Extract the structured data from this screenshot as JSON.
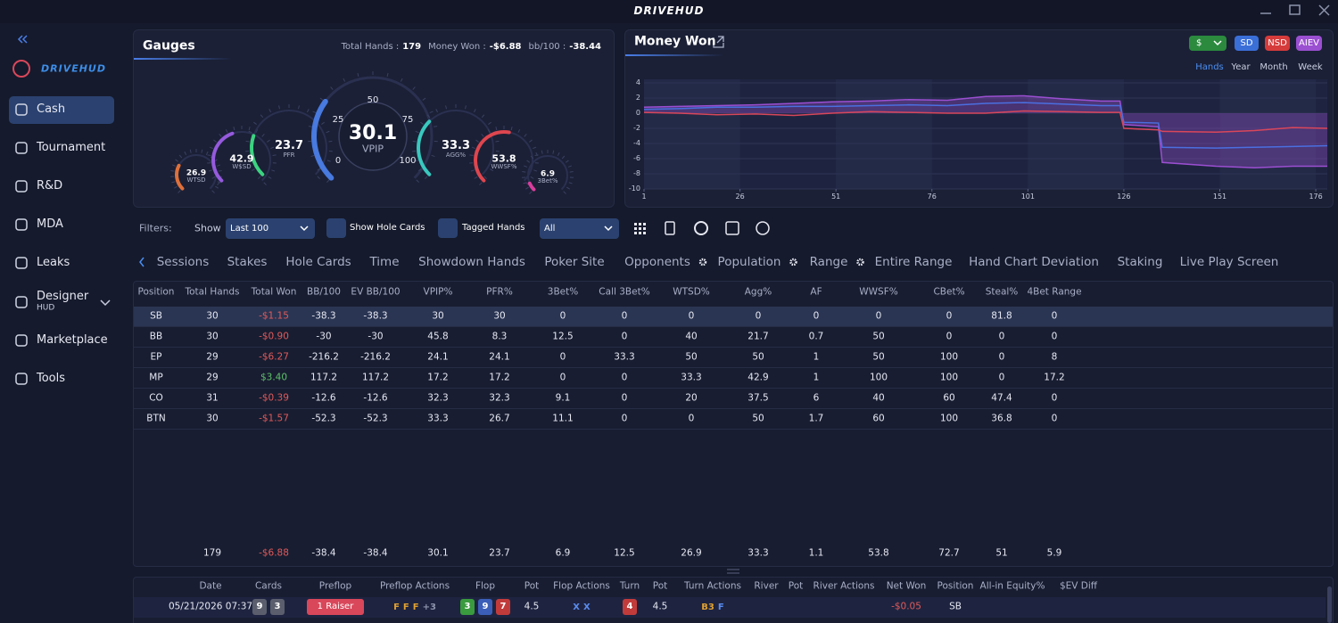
{
  "titlebar": {
    "logo": "DRIVEHUD"
  },
  "sidebar": {
    "logo": "DRIVEHUD",
    "active": 0,
    "items": [
      {
        "label": "Cash"
      },
      {
        "label": "Tournament"
      },
      {
        "label": "R&D"
      },
      {
        "label": "MDA"
      },
      {
        "label": "Leaks"
      },
      {
        "label": "Designer",
        "sublabel": "HUD"
      },
      {
        "label": "Marketplace"
      },
      {
        "label": "Tools"
      }
    ]
  },
  "gauges": {
    "title": "Gauges",
    "total_hands_label": "Total Hands :",
    "total_hands": "179",
    "money_won_label": "Money Won :",
    "money_won": "-$6.88",
    "bb100_label": "bb/100 :",
    "bb100": "-38.44",
    "scale": [
      "0",
      "25",
      "50",
      "75",
      "100"
    ],
    "items": [
      {
        "value": "26.9",
        "label": "WTSD",
        "color": "#e8743a"
      },
      {
        "value": "42.9",
        "label": "W$SD",
        "color": "#9b5de5"
      },
      {
        "value": "23.7",
        "label": "PFR",
        "color": "#3ddc84"
      },
      {
        "value": "30.1",
        "label": "VPIP",
        "color": "#4a7ee8"
      },
      {
        "value": "33.3",
        "label": "AGG%",
        "color": "#3ad1c5"
      },
      {
        "value": "53.8",
        "label": "WWSF%",
        "color": "#e8484f"
      },
      {
        "value": "6.9",
        "label": "3Bet%",
        "color": "#e040a0"
      }
    ]
  },
  "money_won": {
    "title": "Money Won",
    "buttons": [
      {
        "label": "$",
        "color": "#2b8a3e"
      },
      {
        "label": "SD",
        "color": "#3b6fd8"
      },
      {
        "label": "NSD",
        "color": "#d63b3b"
      },
      {
        "label": "AIEV",
        "color": "#9b4fd1"
      }
    ],
    "periods": [
      "Hands",
      "Year",
      "Month",
      "Week"
    ],
    "active_period": 0,
    "chart_data": {
      "type": "line",
      "x": [
        1,
        10,
        20,
        30,
        40,
        50,
        60,
        70,
        80,
        90,
        100,
        110,
        120,
        125,
        126,
        135,
        136,
        150,
        160,
        170,
        179
      ],
      "series": [
        {
          "color": "#9b4fd1",
          "area": true,
          "values": [
            0.8,
            0.9,
            1.0,
            1.1,
            1.3,
            1.5,
            1.6,
            1.8,
            1.7,
            2.2,
            2.3,
            1.9,
            1.6,
            1.6,
            -1.5,
            -1.8,
            -6.5,
            -7.0,
            -7.2,
            -7.0,
            -7.0
          ]
        },
        {
          "color": "#4a6fe0",
          "values": [
            0.5,
            0.6,
            0.8,
            0.8,
            0.9,
            0.9,
            1.0,
            1.1,
            1.0,
            1.3,
            1.4,
            1.2,
            1.0,
            1.0,
            -1.2,
            -1.3,
            -4.5,
            -4.6,
            -4.5,
            -4.4,
            -4.3
          ]
        },
        {
          "color": "#d9475a",
          "values": [
            0.1,
            0.0,
            -0.2,
            -0.1,
            -0.3,
            0.0,
            0.2,
            0.1,
            0.0,
            0.0,
            0.3,
            0.2,
            0.1,
            0.1,
            -2.0,
            -2.2,
            -2.4,
            -2.5,
            -2.3,
            -1.9,
            -2.0
          ]
        }
      ],
      "xlim": [
        1,
        179
      ],
      "ylim": [
        -10,
        4
      ],
      "xticks": [
        1,
        26,
        51,
        76,
        101,
        126,
        151,
        176
      ],
      "yticks": [
        4,
        2,
        0,
        -2,
        -4,
        -6,
        -8,
        -10
      ],
      "grid": true
    }
  },
  "filters": {
    "label": "Filters:",
    "show_label": "Show",
    "show_value": "Last 100",
    "show_hole_cards": "Show Hole Cards",
    "tagged_hands": "Tagged Hands",
    "tag_value": "All"
  },
  "tabs": [
    {
      "label": "Sessions"
    },
    {
      "label": "Stakes"
    },
    {
      "label": "Hole Cards"
    },
    {
      "label": "Time"
    },
    {
      "label": "Showdown Hands"
    },
    {
      "label": "Poker Site"
    },
    {
      "label": "Opponents",
      "gear": true
    },
    {
      "label": "Population",
      "gear": true
    },
    {
      "label": "Range",
      "gear": true
    },
    {
      "label": "Entire Range"
    },
    {
      "label": "Hand Chart Deviation"
    },
    {
      "label": "Staking"
    },
    {
      "label": "Live Play Screen"
    }
  ],
  "stats_table": {
    "columns": [
      "Position",
      "Total Hands",
      "Total Won",
      "BB/100",
      "EV BB/100",
      "VPIP%",
      "PFR%",
      "3Bet%",
      "Call 3Bet%",
      "WTSD%",
      "Agg%",
      "AF",
      "WWSF%",
      "CBet%",
      "Steal%",
      "4Bet Range"
    ],
    "selected_row": 0,
    "rows": [
      [
        "SB",
        "30",
        "-$1.15",
        "-38.3",
        "-38.3",
        "30",
        "30",
        "0",
        "0",
        "0",
        "0",
        "0",
        "0",
        "0",
        "81.8",
        "0"
      ],
      [
        "BB",
        "30",
        "-$0.90",
        "-30",
        "-30",
        "45.8",
        "8.3",
        "12.5",
        "0",
        "40",
        "21.7",
        "0.7",
        "50",
        "0",
        "0",
        "0"
      ],
      [
        "EP",
        "29",
        "-$6.27",
        "-216.2",
        "-216.2",
        "24.1",
        "24.1",
        "0",
        "33.3",
        "50",
        "50",
        "1",
        "50",
        "100",
        "0",
        "8"
      ],
      [
        "MP",
        "29",
        "$3.40",
        "117.2",
        "117.2",
        "17.2",
        "17.2",
        "0",
        "0",
        "33.3",
        "42.9",
        "1",
        "100",
        "100",
        "0",
        "17.2"
      ],
      [
        "CO",
        "31",
        "-$0.39",
        "-12.6",
        "-12.6",
        "32.3",
        "32.3",
        "9.1",
        "0",
        "20",
        "37.5",
        "6",
        "40",
        "60",
        "47.4",
        "0"
      ],
      [
        "BTN",
        "30",
        "-$1.57",
        "-52.3",
        "-52.3",
        "33.3",
        "26.7",
        "11.1",
        "0",
        "0",
        "50",
        "1.7",
        "60",
        "100",
        "36.8",
        "0"
      ]
    ],
    "totals": [
      "179",
      "-$6.88",
      "-38.4",
      "-38.4",
      "30.1",
      "23.7",
      "6.9",
      "12.5",
      "26.9",
      "33.3",
      "1.1",
      "53.8",
      "72.7",
      "51",
      "5.9"
    ]
  },
  "hands_table": {
    "columns": [
      "Date",
      "Cards",
      "Preflop",
      "Preflop Actions",
      "Flop",
      "Pot",
      "Flop Actions",
      "Turn",
      "Pot",
      "Turn Actions",
      "River",
      "Pot",
      "River Actions",
      "Net Won",
      "Position",
      "All-in Equity%",
      "$EV Diff"
    ],
    "rows": [
      {
        "date": "05/21/2026 07:37",
        "cards": [
          {
            "rank": "9",
            "color": "#5b5f6d"
          },
          {
            "rank": "3",
            "color": "#5b5f6d"
          }
        ],
        "preflop": "1 Raiser",
        "preflop_actions": [
          {
            "text": "F",
            "color": "#e0a030"
          },
          {
            "text": "F",
            "color": "#e0a030"
          },
          {
            "text": "F",
            "color": "#e0a030"
          },
          {
            "text": "+3",
            "color": "#8d93ab"
          }
        ],
        "flop": [
          {
            "rank": "3",
            "color": "#3a9a3e"
          },
          {
            "rank": "9",
            "color": "#3b5fb8"
          },
          {
            "rank": "7",
            "color": "#c23b3b"
          }
        ],
        "flop_pot": "4.5",
        "flop_actions": [
          {
            "text": "X",
            "color": "#5a8cf0"
          },
          {
            "text": "X",
            "color": "#5a8cf0"
          }
        ],
        "turn": [
          {
            "rank": "4",
            "color": "#c23b3b"
          }
        ],
        "turn_pot": "4.5",
        "turn_actions": [
          {
            "text": "B3",
            "color": "#e0a030"
          },
          {
            "text": "F",
            "color": "#5a8cf0"
          }
        ],
        "net_won": "-$0.05",
        "position": "SB"
      }
    ]
  }
}
